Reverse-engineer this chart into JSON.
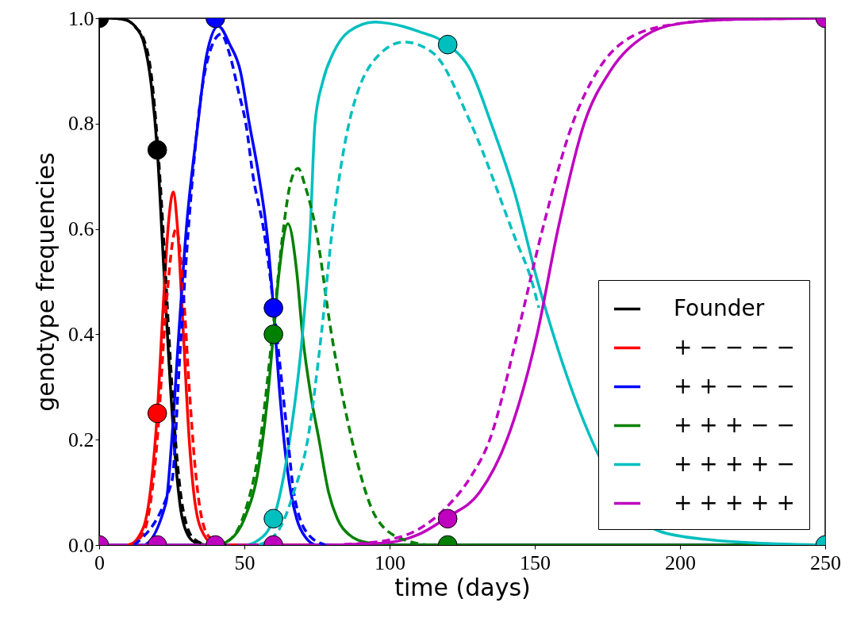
{
  "chart_data": {
    "type": "line",
    "xlabel": "time (days)",
    "ylabel": "genotype frequencies",
    "xlim": [
      0,
      250
    ],
    "ylim": [
      0,
      1
    ],
    "xticks": [
      0,
      50,
      100,
      150,
      200,
      250
    ],
    "yticks": [
      {
        "value": 0,
        "label": "0.0"
      },
      0.2,
      0.4,
      0.6,
      0.8,
      {
        "value": 1,
        "label": "1.0"
      }
    ],
    "grid": false,
    "legend": "bottom right",
    "series": [
      {
        "name": "Founder",
        "color": "#000000",
        "type": "line",
        "line_style": "solid",
        "x": [
          0,
          5,
          8,
          10,
          13,
          15,
          18,
          20,
          22,
          24,
          26,
          28,
          30,
          33,
          38,
          45,
          250
        ],
        "values": [
          1,
          1,
          0.998,
          0.995,
          0.98,
          0.96,
          0.87,
          0.75,
          0.55,
          0.35,
          0.18,
          0.07,
          0.025,
          0.005,
          0,
          0,
          0
        ]
      },
      {
        "name": "+ − − − −",
        "color": "#ff0000",
        "type": "line",
        "line_style": "solid",
        "x": [
          0,
          10,
          15,
          18,
          20,
          22,
          24,
          25.5,
          27,
          29,
          31,
          33,
          36,
          40,
          250
        ],
        "values": [
          0,
          0,
          0.03,
          0.12,
          0.25,
          0.45,
          0.62,
          0.67,
          0.6,
          0.4,
          0.2,
          0.08,
          0.02,
          0,
          0
        ]
      },
      {
        "name": "+ + − − −",
        "color": "#0000ff",
        "type": "line",
        "line_style": "solid",
        "x": [
          0,
          15,
          23,
          25,
          27.4,
          30,
          34,
          37,
          41,
          45,
          48.6,
          51.7,
          55,
          58,
          60,
          62,
          64,
          66,
          68,
          71,
          75,
          250
        ],
        "values": [
          0,
          0,
          0.08,
          0.2,
          0.4,
          0.6,
          0.8,
          0.93,
          0.985,
          0.95,
          0.9,
          0.8,
          0.7,
          0.58,
          0.45,
          0.3,
          0.18,
          0.1,
          0.05,
          0.015,
          0,
          0
        ]
      },
      {
        "name": "+ + + − −",
        "color": "#008000",
        "type": "line",
        "line_style": "solid",
        "x": [
          0,
          40,
          45,
          50,
          55,
          58,
          60,
          62,
          65,
          68,
          70,
          73,
          75.7,
          79,
          82,
          86,
          92,
          100,
          250
        ],
        "values": [
          0,
          0,
          0.01,
          0.05,
          0.15,
          0.28,
          0.4,
          0.52,
          0.61,
          0.52,
          0.4,
          0.28,
          0.2,
          0.1,
          0.05,
          0.02,
          0.005,
          0,
          0
        ]
      },
      {
        "name": "+ + + + −",
        "color": "#00bfbf",
        "type": "line",
        "line_style": "solid",
        "x": [
          0,
          50,
          55,
          60,
          65.6,
          70,
          72.7,
          74.3,
          77,
          80.6,
          86,
          95,
          100,
          110,
          120,
          128,
          135,
          143,
          151,
          193,
          210,
          230,
          250
        ],
        "values": [
          0,
          0,
          0.01,
          0.05,
          0.2,
          0.4,
          0.6,
          0.8,
          0.88,
          0.934,
          0.975,
          0.993,
          0.99,
          0.975,
          0.95,
          0.9,
          0.8,
          0.67,
          0.5,
          0.026,
          0.01,
          0.003,
          0
        ]
      },
      {
        "name": "+ + + + +",
        "color": "#bf00bf",
        "type": "line",
        "line_style": "solid",
        "x": [
          0,
          80,
          90,
          100,
          110,
          120,
          131,
          140.4,
          150.8,
          158,
          167,
          176,
          188,
          200,
          220,
          250
        ],
        "values": [
          0,
          0,
          0.002,
          0.005,
          0.02,
          0.053,
          0.1,
          0.2,
          0.4,
          0.6,
          0.8,
          0.9,
          0.967,
          0.99,
          0.998,
          1
        ]
      },
      {
        "color": "#000000",
        "type": "line",
        "line_style": "dashed",
        "x": [
          0,
          5,
          8,
          10,
          13,
          15,
          18,
          20,
          22,
          24,
          26,
          28,
          30,
          33,
          38,
          45
        ],
        "values": [
          1,
          1,
          0.998,
          0.995,
          0.98,
          0.965,
          0.89,
          0.77,
          0.6,
          0.4,
          0.22,
          0.1,
          0.04,
          0.01,
          0,
          0
        ]
      },
      {
        "color": "#ff0000",
        "type": "line",
        "line_style": "dashed",
        "x": [
          10,
          15,
          20,
          23,
          26.5,
          29,
          31,
          33,
          35,
          38,
          45,
          50
        ],
        "values": [
          0,
          0.02,
          0.2,
          0.45,
          0.6,
          0.48,
          0.3,
          0.15,
          0.06,
          0.015,
          0,
          0
        ]
      },
      {
        "color": "#0000ff",
        "type": "line",
        "line_style": "dashed",
        "x": [
          12,
          25,
          28,
          31,
          35,
          39,
          42,
          45,
          48,
          50.5,
          53,
          56.6,
          65,
          67,
          72,
          78
        ],
        "values": [
          0,
          0.12,
          0.38,
          0.62,
          0.85,
          0.95,
          0.97,
          0.93,
          0.86,
          0.8,
          0.7,
          0.6,
          0.2,
          0.1,
          0.02,
          0
        ]
      },
      {
        "color": "#008000",
        "type": "line",
        "line_style": "dashed",
        "x": [
          40,
          45,
          50,
          55,
          60,
          63,
          66,
          68.5,
          71,
          74.6,
          80,
          87,
          95.6,
          105,
          115,
          130
        ],
        "values": [
          0,
          0.01,
          0.06,
          0.18,
          0.42,
          0.58,
          0.69,
          0.715,
          0.68,
          0.6,
          0.4,
          0.2,
          0.05,
          0.01,
          0,
          0
        ]
      },
      {
        "color": "#00bfbf",
        "type": "line",
        "line_style": "dashed",
        "x": [
          55,
          62,
          67,
          71.8,
          76.5,
          80.3,
          86,
          97,
          105,
          115,
          128,
          143.4,
          149,
          151.4
        ],
        "values": [
          0,
          0.03,
          0.1,
          0.2,
          0.4,
          0.6,
          0.8,
          0.934,
          0.955,
          0.934,
          0.8,
          0.58,
          0.5,
          0.45
        ]
      },
      {
        "color": "#bf00bf",
        "type": "line",
        "line_style": "dashed",
        "x": [
          80,
          90,
          100,
          110,
          120,
          128,
          134.5,
          144,
          152.7,
          163,
          171.6,
          184,
          200,
          220,
          250
        ],
        "values": [
          0,
          0.003,
          0.01,
          0.03,
          0.074,
          0.13,
          0.2,
          0.4,
          0.6,
          0.8,
          0.9,
          0.967,
          0.99,
          0.998,
          1
        ]
      },
      {
        "color": "#000000",
        "type": "scatter",
        "marker": "circle",
        "x": [
          0,
          20
        ],
        "values": [
          1,
          0.75
        ]
      },
      {
        "color": "#ff0000",
        "type": "scatter",
        "marker": "circle",
        "x": [
          20
        ],
        "values": [
          0.25
        ]
      },
      {
        "color": "#0000ff",
        "type": "scatter",
        "marker": "circle",
        "x": [
          40,
          60
        ],
        "values": [
          1,
          0.45
        ]
      },
      {
        "color": "#008000",
        "type": "scatter",
        "marker": "circle",
        "x": [
          60,
          120
        ],
        "values": [
          0.4,
          0
        ]
      },
      {
        "color": "#00bfbf",
        "type": "scatter",
        "marker": "circle",
        "x": [
          60,
          120,
          250
        ],
        "values": [
          0.05,
          0.95,
          0
        ]
      },
      {
        "color": "#bf00bf",
        "type": "scatter",
        "marker": "circle",
        "x": [
          0,
          20,
          40,
          60,
          120,
          250
        ],
        "values": [
          0,
          0,
          0,
          0,
          0.05,
          1
        ]
      }
    ]
  }
}
